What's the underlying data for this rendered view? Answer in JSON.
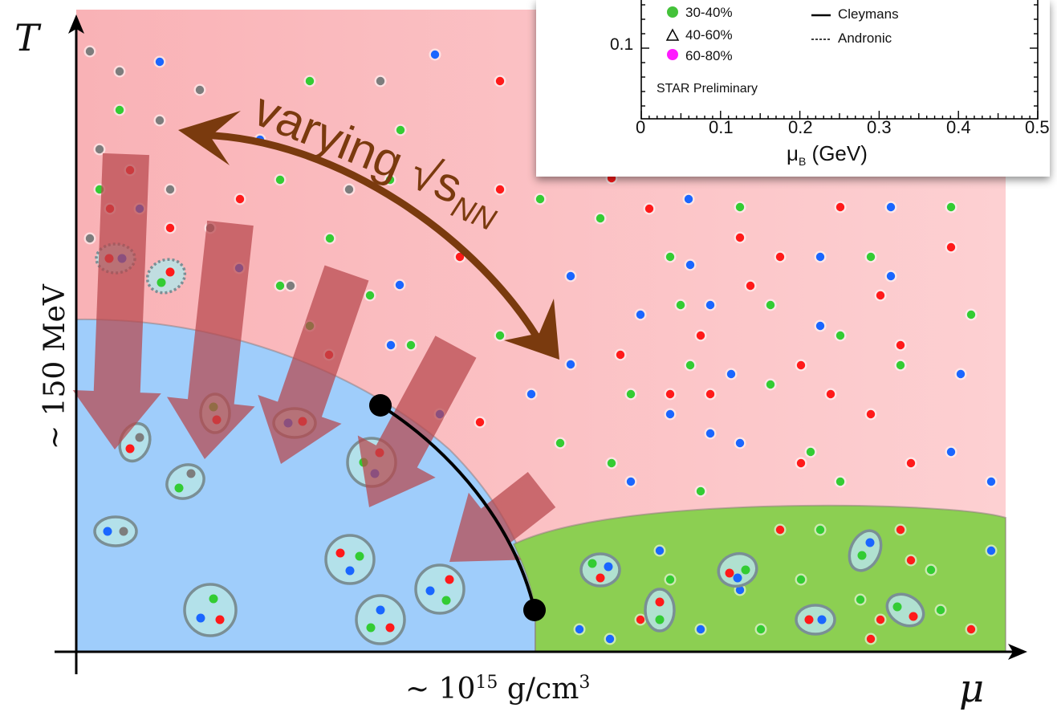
{
  "axes": {
    "y_symbol": "T",
    "x_symbol": "μ",
    "temperature_scale": "~ 150 MeV",
    "density_scale": {
      "prefix": "~ 10",
      "exponent": "15",
      "unit": " g/cm",
      "unit_exponent": "3"
    }
  },
  "annotation": {
    "text": "varying √s",
    "subscript": "NN"
  },
  "inset": {
    "legend_left": [
      "30-40%",
      "40-60%",
      "60-80%"
    ],
    "legend_right": [
      "Cleymans",
      "Andronic"
    ],
    "ytick": "0.1",
    "xticks": [
      "0",
      "0.1",
      "0.2",
      "0.3",
      "0.4",
      "0.5"
    ],
    "xlabel": "μ",
    "xlabel_sub": "B",
    "xlabel_unit": " (GeV)",
    "credit": "STAR Preliminary"
  },
  "colors": {
    "qgp_region": "#fbc4c8",
    "hadron_region": "#9fcdfb",
    "color_superconductor": "#8ccf52",
    "arrow": "#b7474c",
    "double_arrow": "#7a3a0e",
    "quark_red": "#ff1a1a",
    "quark_green": "#33cc33",
    "quark_blue": "#1a66ff",
    "quark_grey": "#7d7d7d"
  }
}
